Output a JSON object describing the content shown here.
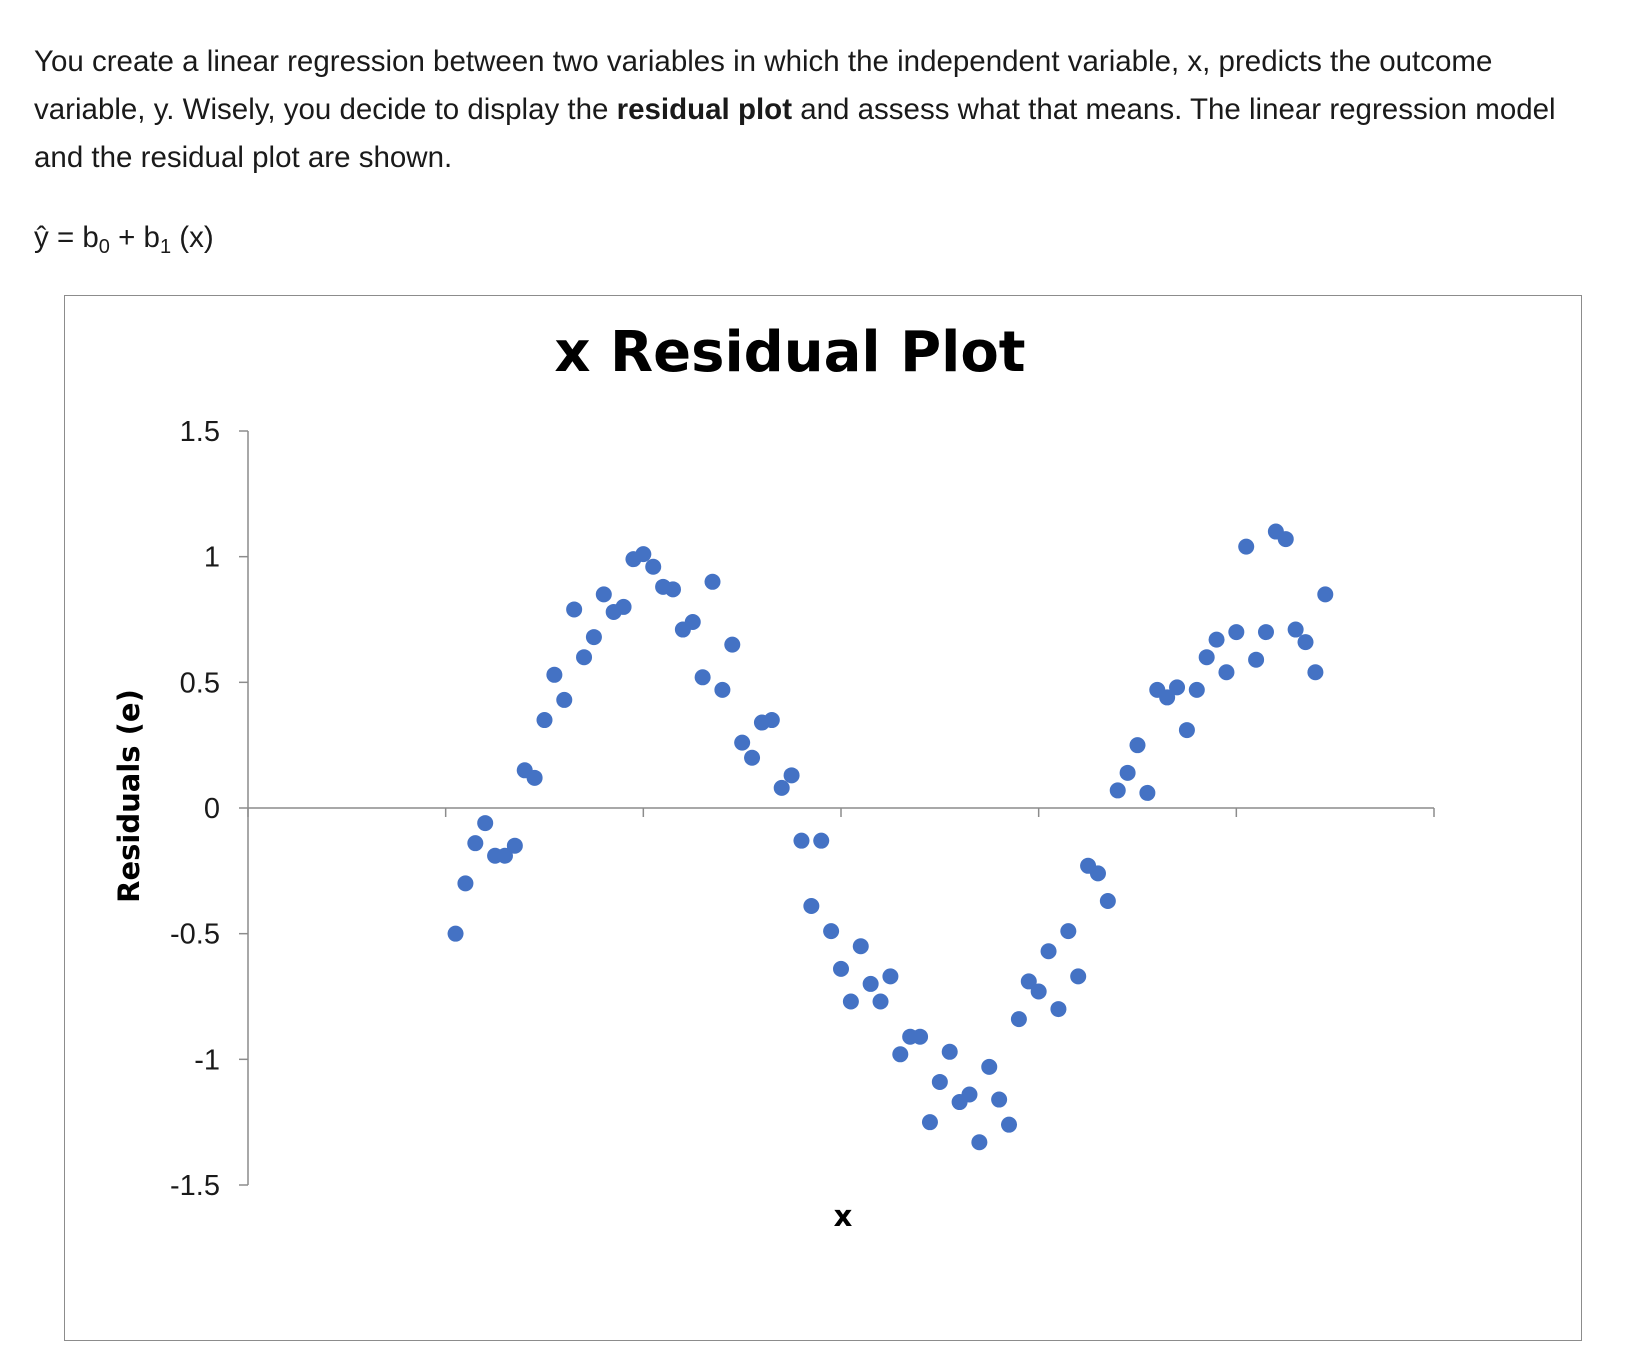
{
  "question": {
    "part1": "You create a linear regression between two variables in which the independent variable, x, predicts the outcome variable, y. Wisely, you decide to display the ",
    "bold": "residual plot",
    "part2": " and assess what that means. The linear regression model and the residual plot are shown."
  },
  "equation": {
    "lhs": "ŷ = b",
    "sub0": "0",
    "mid": " + b",
    "sub1": "1",
    "rhs": " (x)"
  },
  "chart_data": {
    "type": "scatter",
    "title": "x  Residual Plot",
    "xlabel": "x",
    "ylabel": "Residuals (e)",
    "ylim": [
      -1.5,
      1.5
    ],
    "xlim": [
      0,
      120
    ],
    "yticks": [
      "1.5",
      "1",
      "0.5",
      "0",
      "-0.5",
      "-1",
      "-1.5"
    ],
    "ytick_values": [
      1.5,
      1,
      0.5,
      0,
      -0.5,
      -1,
      -1.5
    ],
    "xticks": [
      0,
      20,
      40,
      60,
      80,
      100,
      120
    ],
    "grid": false,
    "legend": "none",
    "marker_color": "#4472C4",
    "series": [
      {
        "x": [
          21,
          22,
          23,
          24,
          25,
          26,
          27,
          28,
          29,
          30,
          31,
          32,
          33,
          34,
          35,
          36,
          37,
          38,
          39,
          40,
          41,
          42,
          43,
          44,
          45,
          46,
          47,
          48,
          49,
          50,
          51,
          52,
          53,
          54,
          55,
          56,
          57,
          58,
          59,
          60,
          61,
          62,
          63,
          64,
          65,
          66,
          67,
          68,
          69,
          70,
          71,
          72,
          73,
          74,
          75,
          76,
          77,
          78,
          79,
          80,
          81,
          82,
          83,
          84,
          85,
          86,
          87,
          88,
          89,
          90,
          91,
          92,
          93,
          94,
          95,
          96,
          97,
          98,
          99,
          100,
          101,
          102,
          103,
          104,
          105,
          106,
          107,
          108,
          109
        ],
        "y": [
          -0.5,
          -0.3,
          -0.14,
          -0.06,
          -0.19,
          -0.19,
          -0.15,
          0.15,
          0.12,
          0.35,
          0.53,
          0.43,
          0.79,
          0.6,
          0.68,
          0.85,
          0.78,
          0.8,
          0.99,
          1.01,
          0.96,
          0.88,
          0.87,
          0.71,
          0.74,
          0.52,
          0.9,
          0.47,
          0.65,
          0.26,
          0.2,
          0.34,
          0.35,
          0.08,
          0.13,
          -0.13,
          -0.39,
          -0.13,
          -0.49,
          -0.64,
          -0.77,
          -0.55,
          -0.7,
          -0.77,
          -0.67,
          -0.98,
          -0.91,
          -0.91,
          -1.25,
          -1.09,
          -0.97,
          -1.17,
          -1.14,
          -1.33,
          -1.03,
          -1.16,
          -1.26,
          -0.84,
          -0.69,
          -0.73,
          -0.57,
          -0.8,
          -0.49,
          -0.67,
          -0.23,
          -0.26,
          -0.37,
          0.07,
          0.14,
          0.25,
          0.06,
          0.47,
          0.44,
          0.48,
          0.31,
          0.47,
          0.6,
          0.67,
          0.54,
          0.7,
          1.04,
          0.59,
          0.7,
          1.1,
          1.07,
          0.71,
          0.66,
          0.54,
          0.85
        ]
      }
    ]
  }
}
